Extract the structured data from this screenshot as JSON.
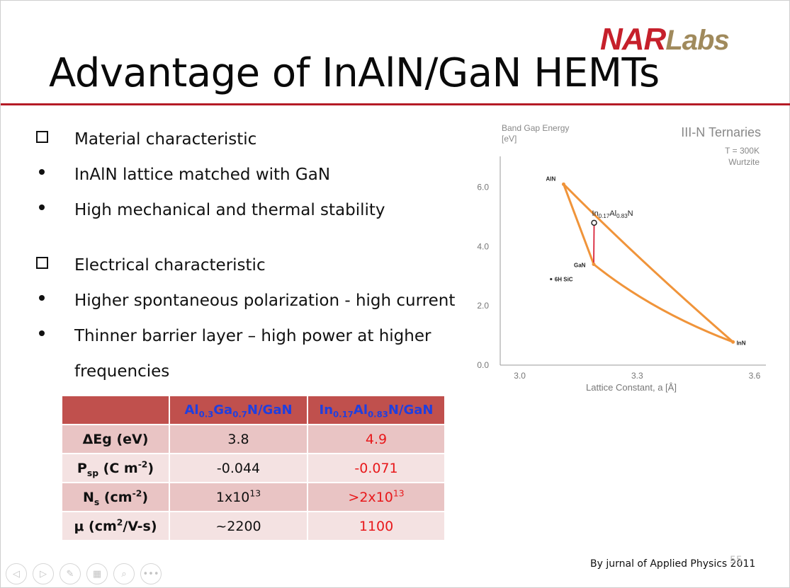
{
  "slide": {
    "title": "Advantage of InAlN/GaN HEMTs",
    "logo": {
      "part1": "NAR",
      "part2": "Labs",
      "primary_color": "#c6202b",
      "secondary_color": "#a08a5c"
    },
    "bullets": [
      {
        "type": "square",
        "text": "Material characteristic"
      },
      {
        "type": "dot",
        "text": "InAlN lattice matched with GaN"
      },
      {
        "type": "dot",
        "text": "High mechanical and thermal stability"
      },
      {
        "type": "square",
        "text": "Electrical characteristic"
      },
      {
        "type": "dot",
        "text": "Higher spontaneous polarization - high current"
      },
      {
        "type": "dot",
        "text": "Thinner barrier layer – high power at higher"
      },
      {
        "type": "none",
        "text": "frequencies"
      }
    ],
    "citation": "By jurnal of Applied Physics 2011",
    "page_number": "55"
  },
  "table": {
    "header_color": "#c0504d",
    "rows": [
      {
        "label_html": "ΔEg (eV)",
        "v1": "3.8",
        "v2": "4.9"
      },
      {
        "label_html": "P<sub>sp</sub> (C m<sup>-2</sup>)",
        "v1": "-0.044",
        "v2": "-0.071"
      },
      {
        "label_html": "N<sub>s</sub> (cm<sup>-2</sup>)",
        "v1_html": "1x10<sup>13</sup>",
        "v2_html": "&gt;2x10<sup>13</sup>"
      },
      {
        "label_html": "μ (cm<sup>2</sup>/V-s)",
        "v1": "~2200",
        "v2": "1100"
      }
    ],
    "col1_html": "Al<sub>0.3</sub>Ga<sub>0.7</sub>N/GaN",
    "col2_html": "In<sub>0.17</sub>Al<sub>0.83</sub>N/GaN"
  },
  "chart_data": {
    "type": "scatter",
    "title": "III-N Ternaries",
    "subtitle_lines": [
      "T = 300K",
      "Wurtzite"
    ],
    "ylabel_lines": [
      "Band Gap Energy",
      "[eV]"
    ],
    "xlabel": "Lattice Constant, a [Å]",
    "xlim": [
      2.95,
      3.62
    ],
    "ylim": [
      0,
      6.8
    ],
    "xticks": [
      "3.0",
      "3.3",
      "3.6"
    ],
    "yticks": [
      "0.0",
      "2.0",
      "4.0",
      "6.0"
    ],
    "points": [
      {
        "name": "AlN",
        "x": 3.112,
        "y": 6.1
      },
      {
        "name": "GaN",
        "x": 3.189,
        "y": 3.4
      },
      {
        "name": "InN",
        "x": 3.545,
        "y": 0.78
      },
      {
        "name": "In0.17Al0.83N",
        "x": 3.19,
        "y": 4.8
      },
      {
        "name": "6H SiC",
        "x": 3.08,
        "y": 2.9
      }
    ],
    "curve_color": "#f0943a",
    "marker_line_color": "#d9243a"
  },
  "navbar": {
    "buttons": [
      {
        "name": "prev-slide-button",
        "glyph": "◁"
      },
      {
        "name": "next-slide-button",
        "glyph": "▷"
      },
      {
        "name": "pen-tool-button",
        "glyph": "✎"
      },
      {
        "name": "slides-grid-button",
        "glyph": "▦"
      },
      {
        "name": "zoom-button",
        "glyph": "⌕"
      },
      {
        "name": "more-options-button",
        "glyph": "•••"
      }
    ]
  }
}
